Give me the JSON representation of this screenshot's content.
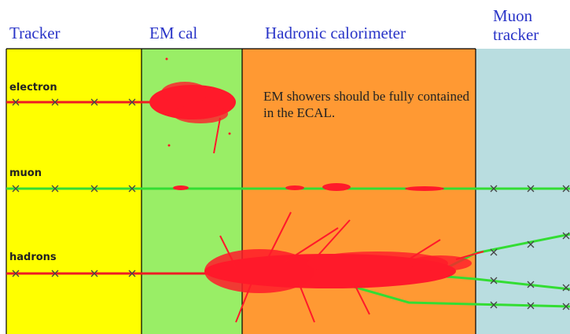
{
  "headers": {
    "tracker": "Tracker",
    "em_cal": "EM cal",
    "hadronic": "Hadronic calorimeter",
    "muon": "Muon tracker"
  },
  "particles": {
    "electron": "electron",
    "muon": "muon",
    "hadrons": "hadrons"
  },
  "annotation": "EM showers should be fully contained in the ECAL."
}
